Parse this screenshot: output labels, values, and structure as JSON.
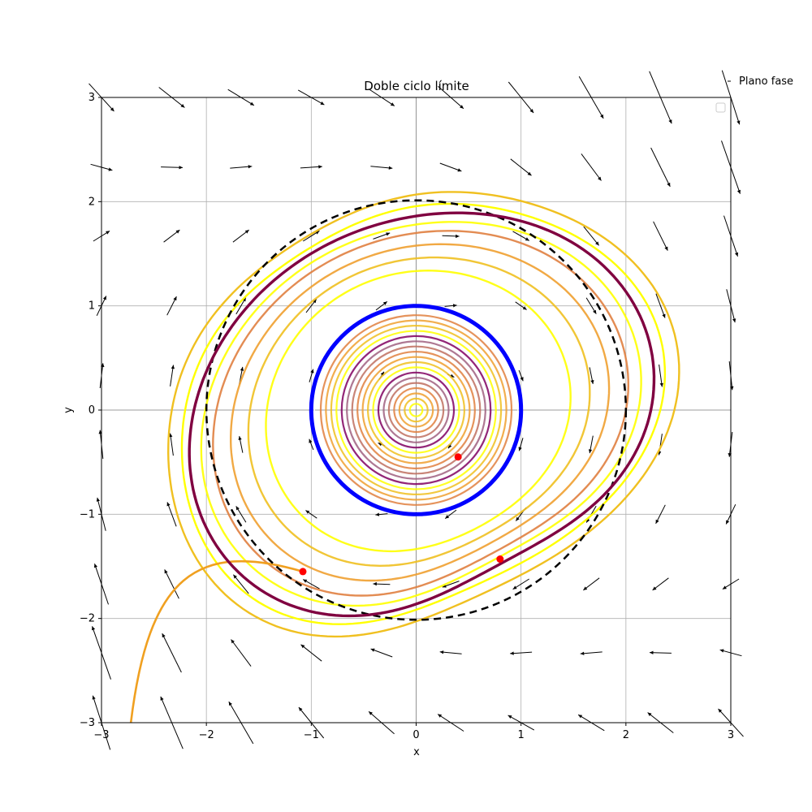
{
  "chart_data": {
    "type": "line",
    "title": "Doble ciclo límite",
    "xlabel": "x",
    "ylabel": "y",
    "xlim": [
      -3,
      3
    ],
    "ylim": [
      -3,
      3
    ],
    "xticks": [
      -3,
      -2,
      -1,
      0,
      1,
      2,
      3
    ],
    "yticks": [
      -3,
      -2,
      -1,
      0,
      1,
      2,
      3
    ],
    "tick_labels_x": [
      "−3",
      "−2",
      "−1",
      "0",
      "1",
      "2",
      "3"
    ],
    "tick_labels_y": [
      "−3",
      "−2",
      "−1",
      "0",
      "1",
      "2",
      "3"
    ],
    "grid": true,
    "legend": {
      "placement": "outside-top-right",
      "entries": [
        {
          "label": "Plano fase",
          "marker": "quiver"
        }
      ]
    },
    "reference_circle": {
      "radius": 2,
      "style": "dashed",
      "color": "#000000"
    },
    "limit_cycles": [
      {
        "kind": "inner-circle",
        "radius": 1,
        "color": "#0000ff"
      },
      {
        "kind": "outer-cycle",
        "color": "#800040",
        "x_extent": [
          -2,
          2
        ],
        "y_extent": [
          -2.35,
          2.35
        ]
      }
    ],
    "initial_points": [
      {
        "x": 0.4,
        "y": -0.45
      },
      {
        "x": 0.8,
        "y": -1.43
      },
      {
        "x": -1.08,
        "y": -1.55
      }
    ],
    "colors": {
      "trajectory_palette": [
        "#ffff00",
        "#f0c020",
        "#f0a030",
        "#e08040",
        "#c07060",
        "#a06080",
        "#800060"
      ],
      "inner_cycle": "#0000ff",
      "outer_cycle": "#800040",
      "initial_point": "#ff0000",
      "quiver": "#000000"
    }
  }
}
